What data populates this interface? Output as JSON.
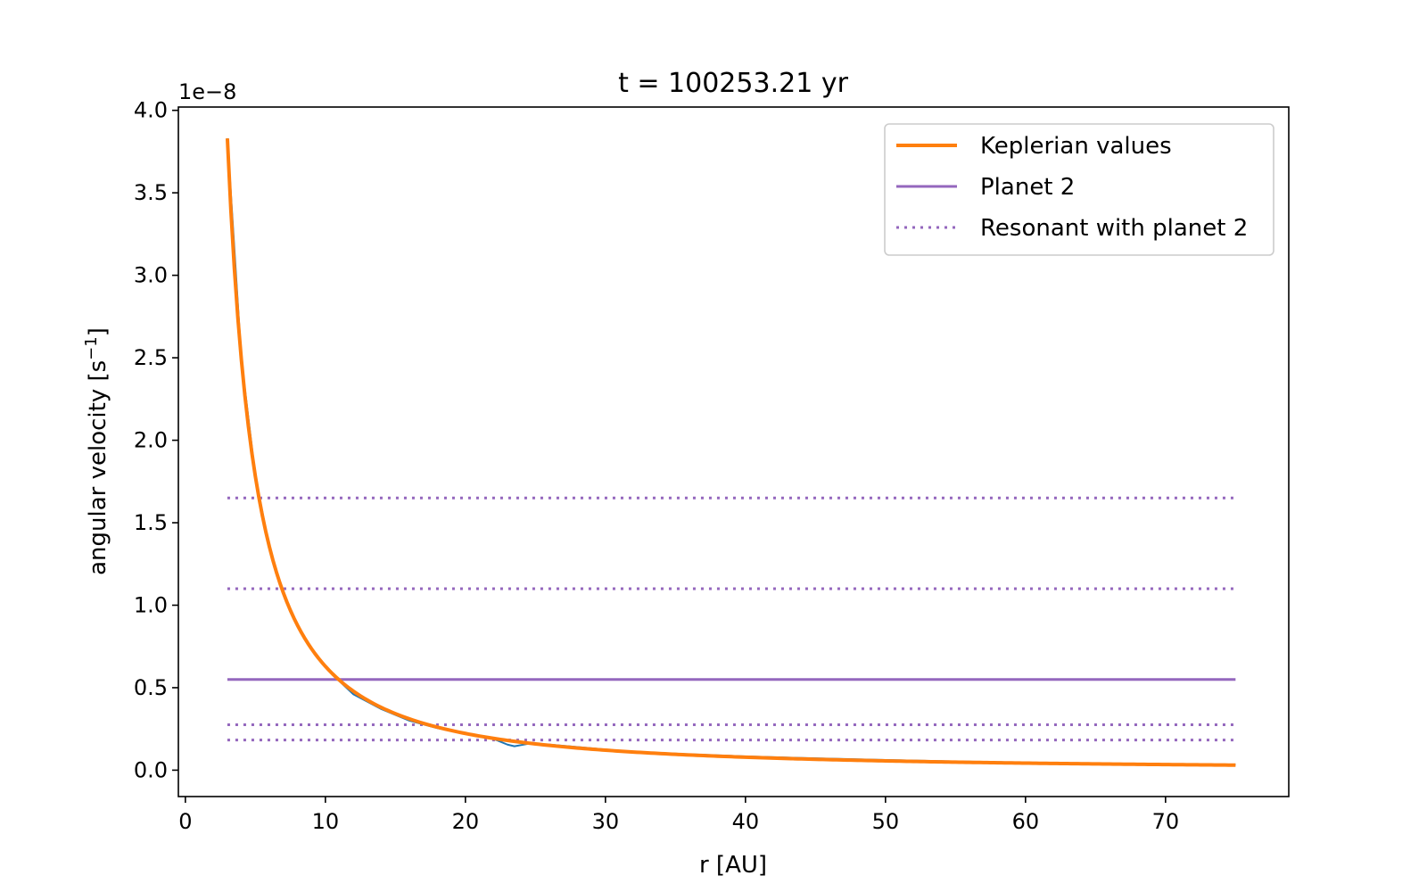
{
  "chart_data": {
    "type": "line",
    "title": "t = 100253.21 yr",
    "xlabel": "r [AU]",
    "ylabel": "angular velocity [s",
    "ylabel_sup": "−1",
    "ylabel_close": "]",
    "y_offset_label": "1e−8",
    "xlim": [
      -0.5,
      78.8
    ],
    "ylim": [
      -0.16,
      4.02
    ],
    "xticks": [
      0,
      10,
      20,
      30,
      40,
      50,
      60,
      70
    ],
    "yticks": [
      0.0,
      0.5,
      1.0,
      1.5,
      2.0,
      2.5,
      3.0,
      3.5,
      4.0
    ],
    "ytick_labels": [
      "0.0",
      "0.5",
      "1.0",
      "1.5",
      "2.0",
      "2.5",
      "3.0",
      "3.5",
      "4.0"
    ],
    "grid": false,
    "legend_position": "top-right",
    "series": [
      {
        "name": "",
        "style": "solid",
        "color": "#1f77b4",
        "width": 2,
        "points": [
          [
            3,
            3.83
          ],
          [
            4,
            2.49
          ],
          [
            5,
            1.78
          ],
          [
            6,
            1.35
          ],
          [
            7,
            1.07
          ],
          [
            8,
            0.876
          ],
          [
            9,
            0.734
          ],
          [
            10,
            0.626
          ],
          [
            11,
            0.54
          ],
          [
            12,
            0.46
          ],
          [
            14,
            0.37
          ],
          [
            16,
            0.3
          ],
          [
            18,
            0.255
          ],
          [
            20,
            0.22
          ],
          [
            22,
            0.19
          ],
          [
            23,
            0.155
          ],
          [
            23.5,
            0.145
          ],
          [
            24.5,
            0.16
          ],
          [
            26,
            0.155
          ],
          [
            28,
            0.14
          ],
          [
            30,
            0.125
          ],
          [
            32,
            0.112
          ],
          [
            33.5,
            0.103
          ],
          [
            35,
            0.1
          ],
          [
            40,
            0.083
          ],
          [
            45,
            0.072
          ],
          [
            50,
            0.062
          ],
          [
            55,
            0.053
          ],
          [
            60,
            0.046
          ],
          [
            65,
            0.041
          ],
          [
            70,
            0.037
          ],
          [
            75,
            0.033
          ]
        ]
      },
      {
        "name": "Keplerian values",
        "style": "solid",
        "color": "#ff7f0e",
        "width": 4,
        "formula": "kepler",
        "r_range": [
          3,
          75
        ],
        "k": 19.9
      },
      {
        "name": "Planet 2",
        "style": "solid",
        "color": "#9467bd",
        "width": 3,
        "y": 0.55,
        "x_range": [
          3,
          75
        ]
      },
      {
        "name": "Resonant with planet 2",
        "style": "dotted",
        "color": "#9467bd",
        "width": 3,
        "y_values": [
          1.65,
          1.1,
          0.275,
          0.183
        ],
        "x_range": [
          3,
          75
        ]
      }
    ]
  }
}
